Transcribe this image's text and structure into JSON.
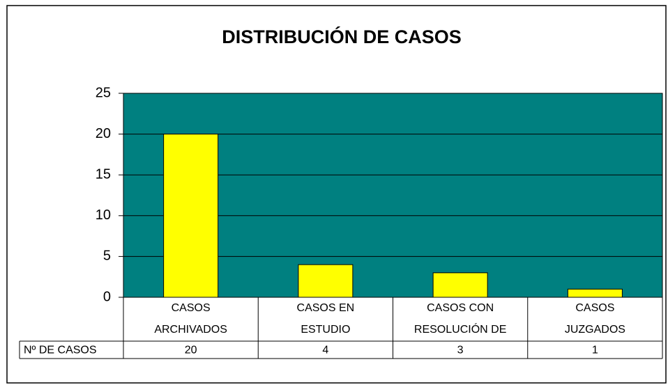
{
  "chart_data": {
    "type": "bar",
    "title": "DISTRIBUCIÓN DE CASOS",
    "categories": [
      [
        "CASOS",
        "ARCHIVADOS"
      ],
      [
        "CASOS EN",
        "ESTUDIO"
      ],
      [
        "CASOS CON",
        "RESOLUCIÓN DE"
      ],
      [
        "CASOS",
        "JUZGADOS"
      ]
    ],
    "series_name": "Nº DE CASOS",
    "values": [
      20,
      4,
      3,
      1
    ],
    "color": "#ffff00",
    "plot_background": "#008080",
    "ylim": [
      0,
      25
    ],
    "yticks": [
      0,
      5,
      10,
      15,
      20,
      25
    ],
    "grid": true,
    "data_table": true
  }
}
